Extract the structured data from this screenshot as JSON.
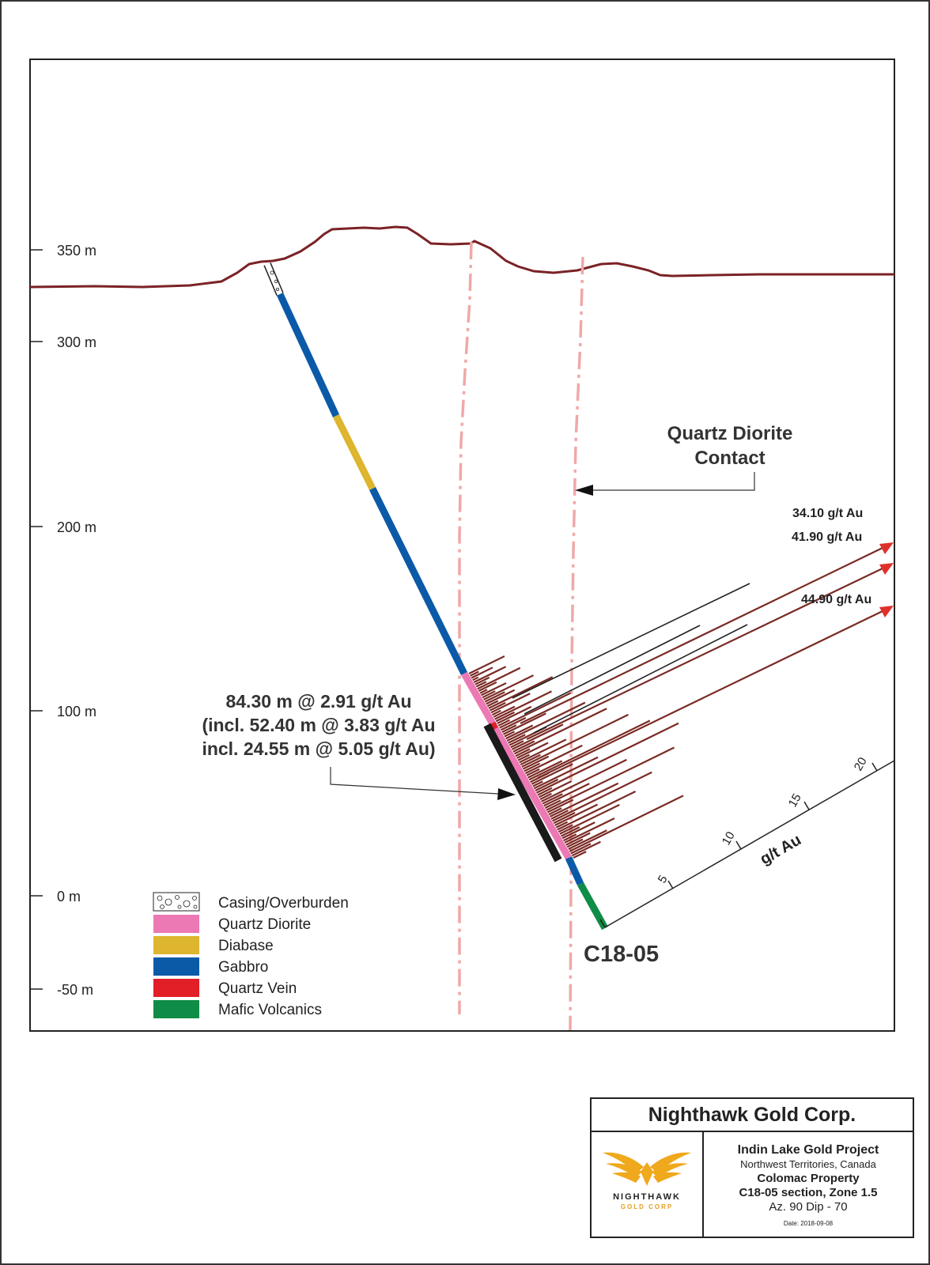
{
  "elevation_labels": [
    "350 m",
    "300 m",
    "200 m",
    "100 m",
    "0 m",
    "-50 m"
  ],
  "legend": [
    {
      "label": "Casing/Overburden",
      "color": "#ffffff",
      "pattern": "circles"
    },
    {
      "label": "Quartz Diorite",
      "color": "#ec78b4"
    },
    {
      "label": "Diabase",
      "color": "#ddb52e"
    },
    {
      "label": "Gabbro",
      "color": "#0b5aa8"
    },
    {
      "label": "Quartz Vein",
      "color": "#e21e26"
    },
    {
      "label": "Mafic Volcanics",
      "color": "#0f8c45"
    }
  ],
  "annotations": {
    "contact_line1": "Quartz Diorite",
    "contact_line2": "Contact",
    "intercept_line1": "84.30 m @ 2.91 g/t Au",
    "intercept_line2": "(incl. 52.40 m @ 3.83 g/t Au",
    "intercept_line3": "incl. 24.55 m @ 5.05 g/t Au)",
    "arrow1": "34.10 g/t Au",
    "arrow2": "41.90 g/t Au",
    "arrow3": "44.90 g/t Au",
    "hole_id": "C18-05"
  },
  "grade_scale": {
    "title": "g/t Au",
    "ticks": [
      "5",
      "10",
      "15",
      "20"
    ]
  },
  "title_block": {
    "company": "Nighthawk Gold Corp.",
    "project": "Indin Lake Gold Project",
    "location": "Northwest Territories, Canada",
    "property": "Colomac Property",
    "section": "C18-05 section, Zone 1.5",
    "azimuth_dip": "Az. 90  Dip - 70",
    "date": "Date: 2018-09-08",
    "logo_name": "NIGHTHAWK",
    "logo_sub": "GOLD CORP"
  },
  "colors": {
    "topography": "#7b2226",
    "contact_line": "#f0a8a8",
    "assay_bar": "#7a2a24",
    "arrow": "#e0302a"
  }
}
